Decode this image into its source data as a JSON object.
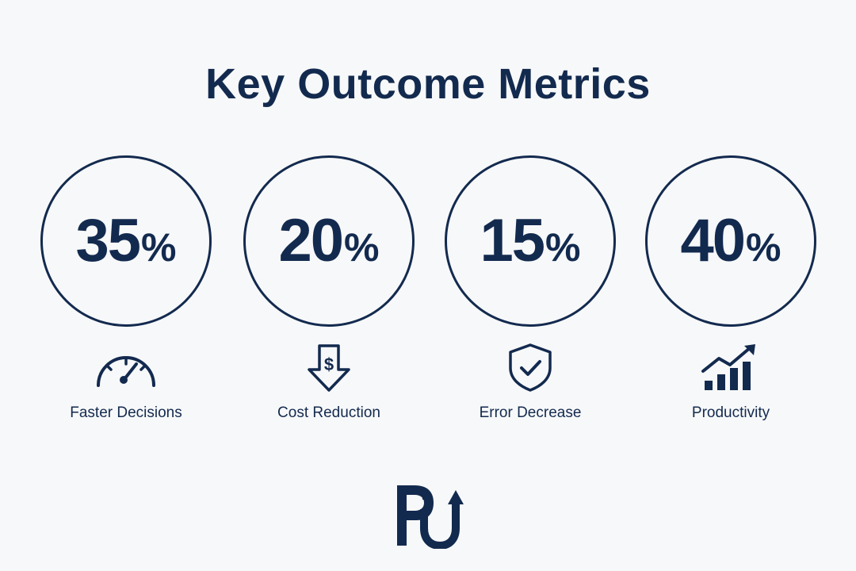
{
  "title": "Key Outcome Metrics",
  "metrics": [
    {
      "value": "35",
      "unit": "%",
      "label": "Faster Decisions",
      "icon": "speedometer-icon"
    },
    {
      "value": "20",
      "unit": "%",
      "label": "Cost Reduction",
      "icon": "dollar-down-arrow-icon"
    },
    {
      "value": "15",
      "unit": "%",
      "label": "Error Decrease",
      "icon": "shield-check-icon"
    },
    {
      "value": "40",
      "unit": "%",
      "label": "Productivity",
      "icon": "growth-chart-icon"
    }
  ],
  "colors": {
    "primary": "#132a4f",
    "background": "#f7f8f9"
  },
  "logo": "brand-logo"
}
